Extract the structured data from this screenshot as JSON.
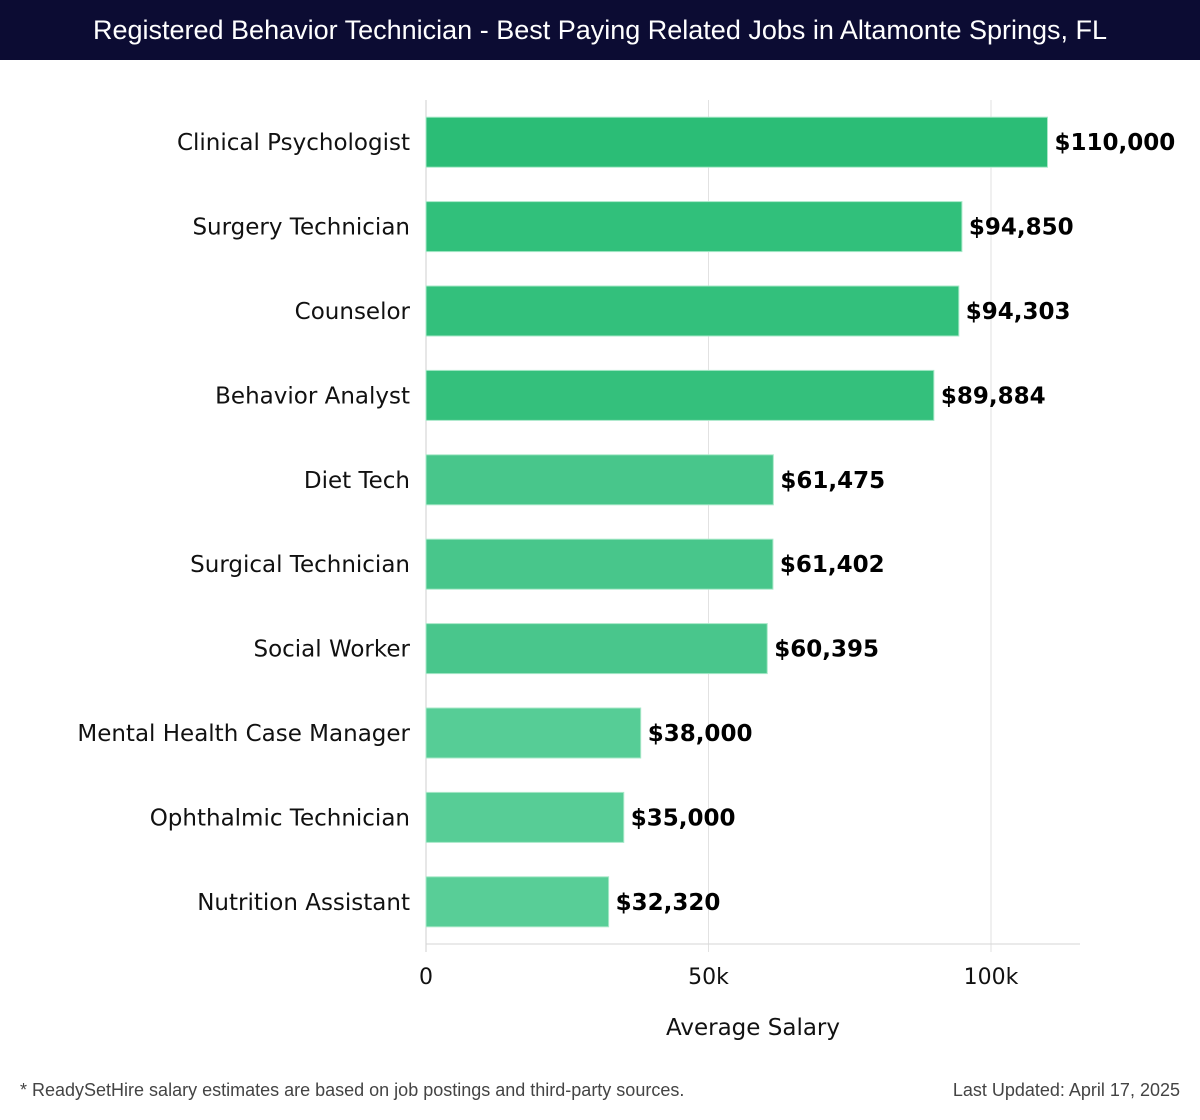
{
  "header": {
    "title": "Registered Behavior Technician - Best Paying Related Jobs in Altamonte Springs, FL"
  },
  "chart_data": {
    "type": "bar",
    "orientation": "horizontal",
    "title": "Registered Behavior Technician - Best Paying Related Jobs in Altamonte Springs, FL",
    "xlabel": "Average Salary",
    "ylabel": "",
    "xlim": [
      0,
      116000
    ],
    "grid": true,
    "categories": [
      "Clinical Psychologist",
      "Surgery Technician",
      "Counselor",
      "Behavior Analyst",
      "Diet Tech",
      "Surgical Technician",
      "Social Worker",
      "Mental Health Case Manager",
      "Ophthalmic Technician",
      "Nutrition Assistant"
    ],
    "values": [
      110000,
      94850,
      94303,
      89884,
      61475,
      61402,
      60395,
      38000,
      35000,
      32320
    ],
    "labels": [
      "$110,000",
      "$94,850",
      "$94,303",
      "$89,884",
      "$61,475",
      "$61,402",
      "$60,395",
      "$38,000",
      "$35,000",
      "$32,320"
    ],
    "colors": [
      "#2bbd76",
      "#31c07b",
      "#33c07c",
      "#34c07c",
      "#48c68b",
      "#48c68b",
      "#49c68c",
      "#56cd96",
      "#57cd96",
      "#58ce97"
    ],
    "xticks": [
      0,
      50000,
      100000
    ],
    "xtick_labels": [
      "0",
      "50k",
      "100k"
    ]
  },
  "footer": {
    "note": "* ReadySetHire salary estimates are based on job postings and third-party sources.",
    "updated": "Last Updated: April 17, 2025"
  }
}
